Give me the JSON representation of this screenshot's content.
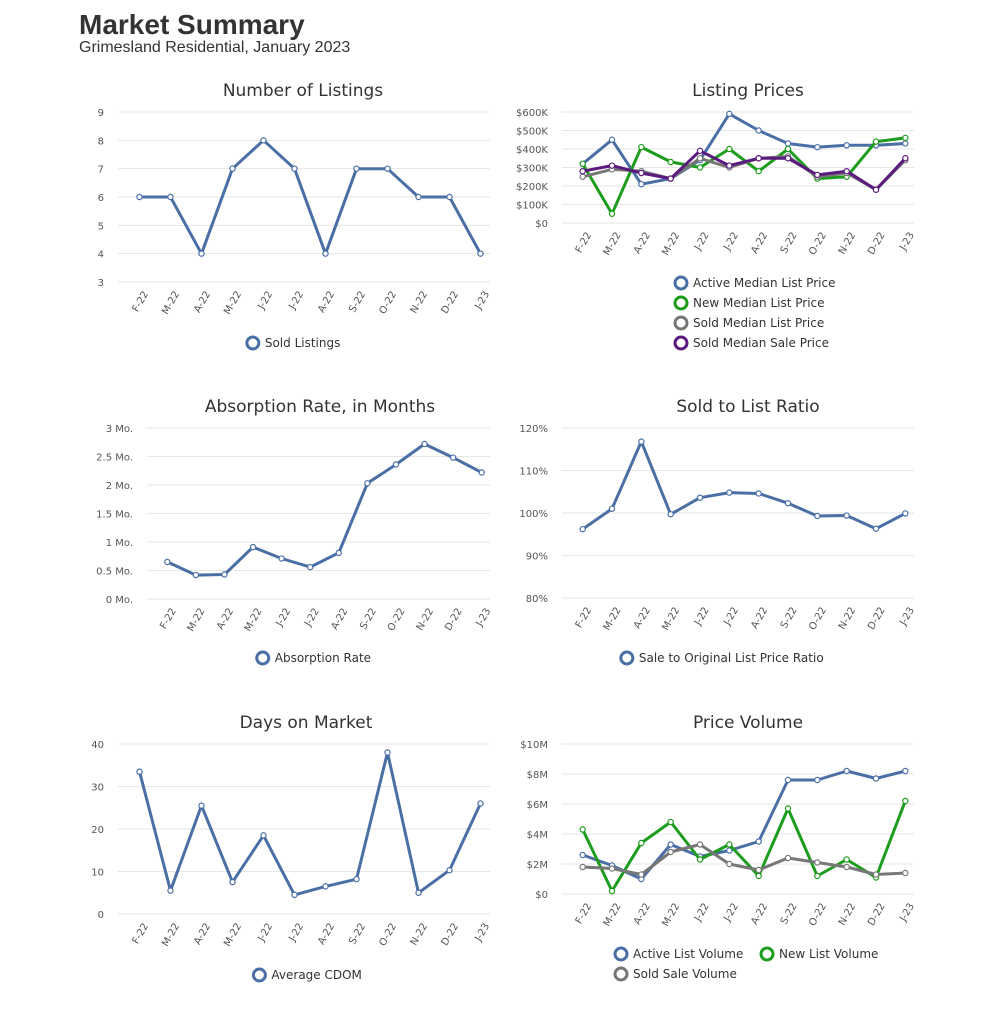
{
  "header": {
    "title": "Market Summary",
    "subtitle": "Grimesland Residential, January 2023"
  },
  "chart_data": [
    {
      "id": "listings",
      "type": "line",
      "title": "Number of Listings",
      "categories": [
        "F-22",
        "M-22",
        "A-22",
        "M-22",
        "J-22",
        "J-22",
        "A-22",
        "S-22",
        "O-22",
        "N-22",
        "D-22",
        "J-23"
      ],
      "y_ticks": [
        "3",
        "4",
        "5",
        "6",
        "7",
        "8",
        "9"
      ],
      "ylim": [
        3,
        9
      ],
      "series": [
        {
          "name": "Sold Listings",
          "color": "#4a6fa5",
          "values": [
            6,
            6,
            4,
            7,
            8,
            7,
            4,
            7,
            7,
            6,
            6,
            4
          ]
        }
      ],
      "legend": "bottom"
    },
    {
      "id": "prices",
      "type": "line",
      "title": "Listing Prices",
      "categories": [
        "F-22",
        "M-22",
        "A-22",
        "M-22",
        "J-22",
        "J-22",
        "A-22",
        "S-22",
        "O-22",
        "N-22",
        "D-22",
        "J-23"
      ],
      "y_ticks": [
        "$0",
        "$100K",
        "$200K",
        "$300K",
        "$400K",
        "$500K",
        "$600K"
      ],
      "ylim": [
        0,
        600000
      ],
      "series": [
        {
          "name": "Active Median List Price",
          "color": "#4a6fa5",
          "values": [
            320000,
            450000,
            210000,
            240000,
            340000,
            590000,
            500000,
            430000,
            410000,
            420000,
            420000,
            430000
          ]
        },
        {
          "name": "New Median List Price",
          "color": "#1e9c1e",
          "values": [
            320000,
            50000,
            410000,
            330000,
            300000,
            400000,
            280000,
            400000,
            240000,
            250000,
            440000,
            460000
          ]
        },
        {
          "name": "Sold Median List Price",
          "color": "#777777",
          "values": [
            250000,
            290000,
            280000,
            240000,
            350000,
            300000,
            350000,
            360000,
            250000,
            270000,
            180000,
            340000
          ]
        },
        {
          "name": "Sold Median Sale Price",
          "color": "#5b1a7e",
          "values": [
            280000,
            310000,
            270000,
            240000,
            390000,
            310000,
            350000,
            350000,
            260000,
            280000,
            180000,
            350000
          ]
        }
      ],
      "legend": "bottom"
    },
    {
      "id": "absorption",
      "type": "line",
      "title": "Absorption Rate, in Months",
      "categories": [
        "F-22",
        "M-22",
        "A-22",
        "M-22",
        "J-22",
        "J-22",
        "A-22",
        "S-22",
        "O-22",
        "N-22",
        "D-22",
        "J-23"
      ],
      "y_ticks": [
        "0 Mo.",
        "0.5 Mo.",
        "1 Mo.",
        "1.5 Mo.",
        "2 Mo.",
        "2.5 Mo.",
        "3 Mo."
      ],
      "ylim": [
        0,
        3
      ],
      "series": [
        {
          "name": "Absorption Rate",
          "color": "#4a6fa5",
          "values": [
            0.65,
            0.42,
            0.43,
            0.91,
            0.71,
            0.56,
            0.81,
            2.03,
            2.36,
            2.72,
            2.48,
            2.22
          ]
        }
      ],
      "legend": "bottom"
    },
    {
      "id": "ratio",
      "type": "line",
      "title": "Sold to List Ratio",
      "categories": [
        "F-22",
        "M-22",
        "A-22",
        "M-22",
        "J-22",
        "J-22",
        "A-22",
        "S-22",
        "O-22",
        "N-22",
        "D-22",
        "J-23"
      ],
      "y_ticks": [
        "80%",
        "90%",
        "100%",
        "110%",
        "120%"
      ],
      "ylim": [
        80,
        120
      ],
      "series": [
        {
          "name": "Sale to Original List Price Ratio",
          "color": "#4a6fa5",
          "values": [
            96.2,
            101,
            116.8,
            99.7,
            103.6,
            104.8,
            104.6,
            102.3,
            99.3,
            99.4,
            96.3,
            99.9
          ]
        }
      ],
      "legend": "bottom"
    },
    {
      "id": "dom",
      "type": "line",
      "title": "Days on Market",
      "categories": [
        "F-22",
        "M-22",
        "A-22",
        "M-22",
        "J-22",
        "J-22",
        "A-22",
        "S-22",
        "O-22",
        "N-22",
        "D-22",
        "J-23"
      ],
      "y_ticks": [
        "0",
        "10",
        "20",
        "30",
        "40"
      ],
      "ylim": [
        0,
        40
      ],
      "series": [
        {
          "name": "Average CDOM",
          "color": "#4a6fa5",
          "values": [
            33.5,
            5.5,
            25.5,
            7.5,
            18.5,
            4.5,
            6.5,
            8.2,
            38,
            5,
            10.3,
            26
          ]
        }
      ],
      "legend": "bottom"
    },
    {
      "id": "volume",
      "type": "line",
      "title": "Price Volume",
      "categories": [
        "F-22",
        "M-22",
        "A-22",
        "M-22",
        "J-22",
        "J-22",
        "A-22",
        "S-22",
        "O-22",
        "N-22",
        "D-22",
        "J-23"
      ],
      "y_ticks": [
        "$0",
        "$2M",
        "$4M",
        "$6M",
        "$8M",
        "$10M"
      ],
      "ylim": [
        0,
        10000000
      ],
      "series": [
        {
          "name": "Active List Volume",
          "color": "#4a6fa5",
          "values": [
            2600000,
            1900000,
            1000000,
            3300000,
            2500000,
            2900000,
            3500000,
            7600000,
            7600000,
            8200000,
            7700000,
            8200000
          ]
        },
        {
          "name": "New List Volume",
          "color": "#1e9c1e",
          "values": [
            4300000,
            200000,
            3400000,
            4800000,
            2300000,
            3300000,
            1200000,
            5700000,
            1200000,
            2300000,
            1100000,
            6200000
          ]
        },
        {
          "name": "Sold Sale Volume",
          "color": "#777777",
          "values": [
            1800000,
            1700000,
            1300000,
            2800000,
            3300000,
            2000000,
            1600000,
            2400000,
            2100000,
            1800000,
            1300000,
            1400000
          ]
        }
      ],
      "legend": "bottom"
    }
  ]
}
